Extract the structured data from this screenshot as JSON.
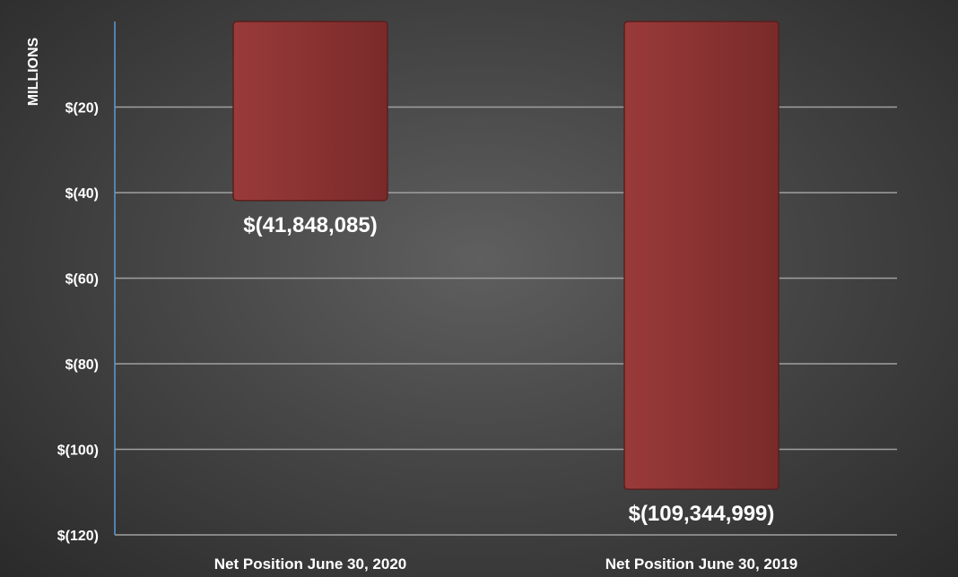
{
  "chart_data": {
    "type": "bar",
    "ylabel": "MILLIONS",
    "categories": [
      "Net Position June 30, 2020",
      "Net Position June 30, 2019"
    ],
    "values": [
      -41.848085,
      -109.344999
    ],
    "data_labels": [
      "$(41,848,085)",
      "$(109,344,999)"
    ],
    "ylim": [
      -120,
      0
    ],
    "yticks": [
      -20,
      -40,
      -60,
      -80,
      -100,
      -120
    ],
    "ytick_labels": [
      "$(20)",
      "$(40)",
      "$(60)",
      "$(80)",
      "$(100)",
      "$(120)"
    ],
    "grid": true,
    "colors": {
      "bar": "#8a3232",
      "bar_edge": "#5a1e1e",
      "grid": "#a0a0a0",
      "axis": "#5b9bd5",
      "text": "#ffffff"
    }
  }
}
